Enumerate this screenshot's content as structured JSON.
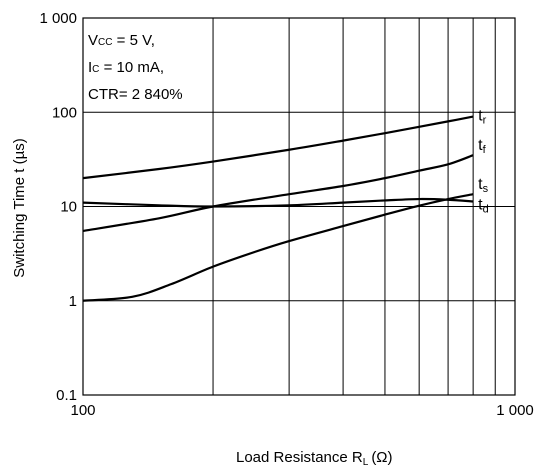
{
  "chart_data": {
    "type": "line",
    "xscale": "log",
    "yscale": "log",
    "xlim": [
      100,
      1000
    ],
    "ylim": [
      0.1,
      1000
    ],
    "grid": true,
    "xlabel_main": "Load Resistance  R",
    "xlabel_sub": "L",
    "xlabel_unit": "(Ω)",
    "ylabel": "Switching Time  t (µs)",
    "xticks": [
      {
        "value": 100,
        "label": "100"
      },
      {
        "value": 1000,
        "label": "1 000"
      }
    ],
    "yticks": [
      {
        "value": 0.1,
        "label": "0.1"
      },
      {
        "value": 1,
        "label": "1"
      },
      {
        "value": 10,
        "label": "10"
      },
      {
        "value": 100,
        "label": "100"
      },
      {
        "value": 1000,
        "label": "1 000"
      }
    ],
    "conditions": {
      "line1_main": "V",
      "line1_sub": "CC",
      "line1_rest": " = 5 V,",
      "line2_main": "I",
      "line2_sub": "C",
      "line2_rest": " = 10 mA,",
      "line3": "CTR= 2 840%"
    },
    "series": [
      {
        "name": "tr",
        "label_main": "t",
        "label_sub": "r",
        "x": [
          100,
          150,
          200,
          300,
          400,
          500,
          600,
          700,
          800
        ],
        "y": [
          20,
          25,
          30,
          40,
          50,
          60,
          70,
          80,
          90
        ]
      },
      {
        "name": "tf",
        "label_main": "t",
        "label_sub": "f",
        "x": [
          100,
          150,
          200,
          300,
          400,
          500,
          600,
          700,
          800
        ],
        "y": [
          5.5,
          7.5,
          10,
          13.5,
          16.5,
          20,
          24,
          28,
          35
        ]
      },
      {
        "name": "ts",
        "label_main": "t",
        "label_sub": "s",
        "x": [
          100,
          130,
          160,
          200,
          250,
          300,
          400,
          500,
          600,
          700,
          800
        ],
        "y": [
          1.0,
          1.1,
          1.5,
          2.3,
          3.3,
          4.3,
          6.2,
          8.2,
          10.2,
          12.0,
          13.5
        ]
      },
      {
        "name": "td",
        "label_main": "t",
        "label_sub": "d",
        "x": [
          100,
          150,
          200,
          300,
          400,
          500,
          600,
          700,
          800
        ],
        "y": [
          11,
          10.3,
          10,
          10.3,
          11,
          11.6,
          12,
          11.8,
          11.3
        ]
      }
    ]
  }
}
